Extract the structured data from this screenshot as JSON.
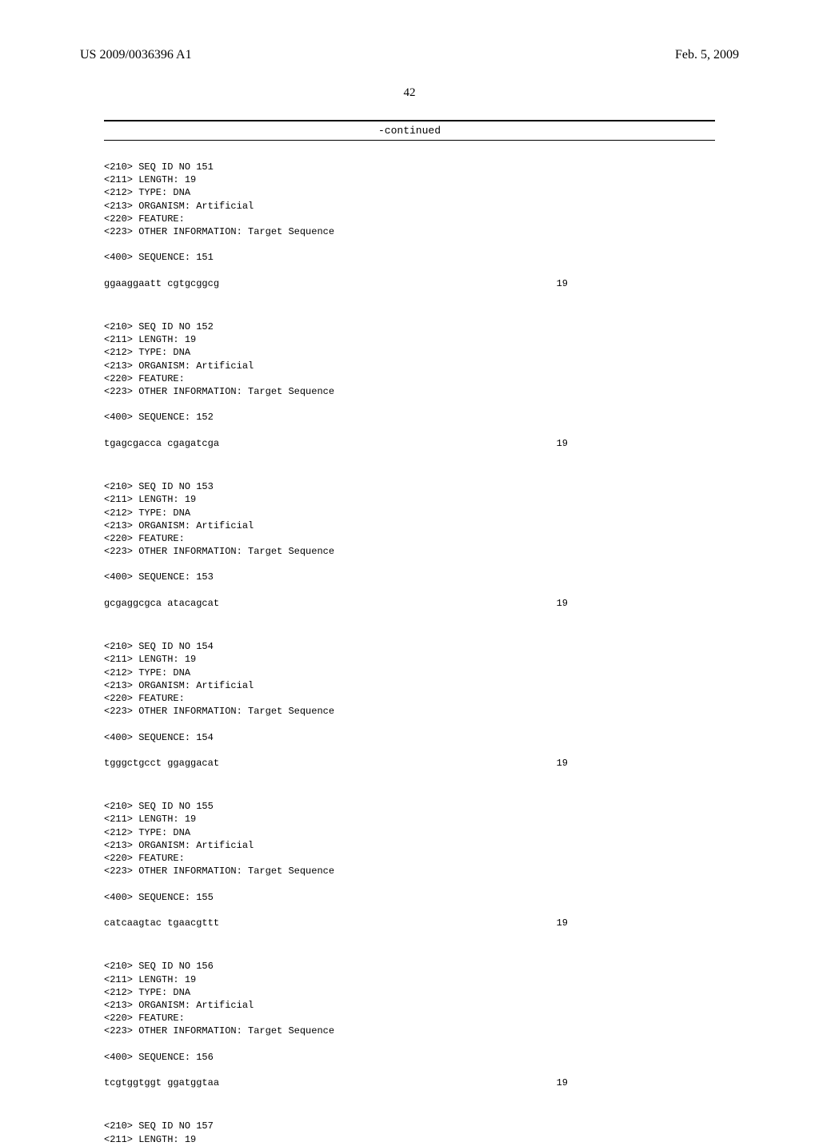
{
  "header": {
    "pub_number": "US 2009/0036396 A1",
    "pub_date": "Feb. 5, 2009"
  },
  "page_number": "42",
  "continued_label": "-continued",
  "sequences": [
    {
      "header": [
        "<210> SEQ ID NO 151",
        "<211> LENGTH: 19",
        "<212> TYPE: DNA",
        "<213> ORGANISM: Artificial",
        "<220> FEATURE:",
        "<223> OTHER INFORMATION: Target Sequence"
      ],
      "seq_label": "<400> SEQUENCE: 151",
      "sequence": "ggaaggaatt cgtgcggcg",
      "length": "19"
    },
    {
      "header": [
        "<210> SEQ ID NO 152",
        "<211> LENGTH: 19",
        "<212> TYPE: DNA",
        "<213> ORGANISM: Artificial",
        "<220> FEATURE:",
        "<223> OTHER INFORMATION: Target Sequence"
      ],
      "seq_label": "<400> SEQUENCE: 152",
      "sequence": "tgagcgacca cgagatcga",
      "length": "19"
    },
    {
      "header": [
        "<210> SEQ ID NO 153",
        "<211> LENGTH: 19",
        "<212> TYPE: DNA",
        "<213> ORGANISM: Artificial",
        "<220> FEATURE:",
        "<223> OTHER INFORMATION: Target Sequence"
      ],
      "seq_label": "<400> SEQUENCE: 153",
      "sequence": "gcgaggcgca atacagcat",
      "length": "19"
    },
    {
      "header": [
        "<210> SEQ ID NO 154",
        "<211> LENGTH: 19",
        "<212> TYPE: DNA",
        "<213> ORGANISM: Artificial",
        "<220> FEATURE:",
        "<223> OTHER INFORMATION: Target Sequence"
      ],
      "seq_label": "<400> SEQUENCE: 154",
      "sequence": "tgggctgcct ggaggacat",
      "length": "19"
    },
    {
      "header": [
        "<210> SEQ ID NO 155",
        "<211> LENGTH: 19",
        "<212> TYPE: DNA",
        "<213> ORGANISM: Artificial",
        "<220> FEATURE:",
        "<223> OTHER INFORMATION: Target Sequence"
      ],
      "seq_label": "<400> SEQUENCE: 155",
      "sequence": "catcaagtac tgaacgttt",
      "length": "19"
    },
    {
      "header": [
        "<210> SEQ ID NO 156",
        "<211> LENGTH: 19",
        "<212> TYPE: DNA",
        "<213> ORGANISM: Artificial",
        "<220> FEATURE:",
        "<223> OTHER INFORMATION: Target Sequence"
      ],
      "seq_label": "<400> SEQUENCE: 156",
      "sequence": "tcgtggtggt ggatggtaa",
      "length": "19"
    }
  ],
  "trailing": [
    "<210> SEQ ID NO 157",
    "<211> LENGTH: 19"
  ]
}
